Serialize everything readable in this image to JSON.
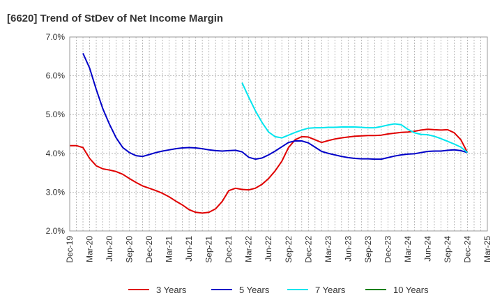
{
  "chart_data": {
    "type": "line",
    "title": "[6620]  Trend of StDev of Net Income Margin",
    "xlabel": "",
    "ylabel": "",
    "ylim": [
      2.0,
      7.0
    ],
    "y_ticks": [
      "2.0%",
      "3.0%",
      "4.0%",
      "5.0%",
      "6.0%",
      "7.0%"
    ],
    "x_ticks": [
      "Dec-19",
      "Mar-20",
      "Jun-20",
      "Sep-20",
      "Dec-20",
      "Mar-21",
      "Jun-21",
      "Sep-21",
      "Dec-21",
      "Mar-22",
      "Jun-22",
      "Sep-22",
      "Dec-22",
      "Mar-23",
      "Jun-23",
      "Sep-23",
      "Dec-23",
      "Mar-24",
      "Jun-24",
      "Sep-24",
      "Dec-24",
      "Mar-25"
    ],
    "grid": true,
    "legend_position": "bottom",
    "series": [
      {
        "name": "3 Years",
        "color": "#e00000",
        "points": [
          [
            "2019-12",
            4.2
          ],
          [
            "2020-01",
            4.2
          ],
          [
            "2020-02",
            4.15
          ],
          [
            "2020-03",
            3.87
          ],
          [
            "2020-04",
            3.68
          ],
          [
            "2020-05",
            3.6
          ],
          [
            "2020-06",
            3.57
          ],
          [
            "2020-07",
            3.53
          ],
          [
            "2020-08",
            3.46
          ],
          [
            "2020-09",
            3.35
          ],
          [
            "2020-10",
            3.25
          ],
          [
            "2020-11",
            3.16
          ],
          [
            "2020-12",
            3.1
          ],
          [
            "2021-01",
            3.04
          ],
          [
            "2021-02",
            2.97
          ],
          [
            "2021-03",
            2.88
          ],
          [
            "2021-04",
            2.77
          ],
          [
            "2021-05",
            2.67
          ],
          [
            "2021-06",
            2.55
          ],
          [
            "2021-07",
            2.48
          ],
          [
            "2021-08",
            2.46
          ],
          [
            "2021-09",
            2.48
          ],
          [
            "2021-10",
            2.57
          ],
          [
            "2021-11",
            2.76
          ],
          [
            "2021-12",
            3.04
          ],
          [
            "2022-01",
            3.1
          ],
          [
            "2022-02",
            3.07
          ],
          [
            "2022-03",
            3.06
          ],
          [
            "2022-04",
            3.1
          ],
          [
            "2022-05",
            3.2
          ],
          [
            "2022-06",
            3.35
          ],
          [
            "2022-07",
            3.55
          ],
          [
            "2022-08",
            3.8
          ],
          [
            "2022-09",
            4.15
          ],
          [
            "2022-10",
            4.35
          ],
          [
            "2022-11",
            4.43
          ],
          [
            "2022-12",
            4.42
          ],
          [
            "2023-01",
            4.35
          ],
          [
            "2023-02",
            4.28
          ],
          [
            "2023-03",
            4.33
          ],
          [
            "2023-04",
            4.37
          ],
          [
            "2023-05",
            4.4
          ],
          [
            "2023-06",
            4.42
          ],
          [
            "2023-07",
            4.44
          ],
          [
            "2023-08",
            4.45
          ],
          [
            "2023-09",
            4.46
          ],
          [
            "2023-10",
            4.46
          ],
          [
            "2023-11",
            4.47
          ],
          [
            "2023-12",
            4.5
          ],
          [
            "2024-01",
            4.52
          ],
          [
            "2024-02",
            4.54
          ],
          [
            "2024-03",
            4.55
          ],
          [
            "2024-04",
            4.57
          ],
          [
            "2024-05",
            4.6
          ],
          [
            "2024-06",
            4.62
          ],
          [
            "2024-07",
            4.61
          ],
          [
            "2024-08",
            4.6
          ],
          [
            "2024-09",
            4.61
          ],
          [
            "2024-10",
            4.53
          ],
          [
            "2024-11",
            4.35
          ],
          [
            "2024-12",
            4.02
          ]
        ]
      },
      {
        "name": "5 Years",
        "color": "#0000c8",
        "points": [
          [
            "2020-02",
            6.58
          ],
          [
            "2020-03",
            6.2
          ],
          [
            "2020-04",
            5.65
          ],
          [
            "2020-05",
            5.15
          ],
          [
            "2020-06",
            4.75
          ],
          [
            "2020-07",
            4.4
          ],
          [
            "2020-08",
            4.15
          ],
          [
            "2020-09",
            4.02
          ],
          [
            "2020-10",
            3.94
          ],
          [
            "2020-11",
            3.92
          ],
          [
            "2020-12",
            3.97
          ],
          [
            "2021-01",
            4.02
          ],
          [
            "2021-02",
            4.06
          ],
          [
            "2021-03",
            4.09
          ],
          [
            "2021-04",
            4.12
          ],
          [
            "2021-05",
            4.14
          ],
          [
            "2021-06",
            4.15
          ],
          [
            "2021-07",
            4.14
          ],
          [
            "2021-08",
            4.12
          ],
          [
            "2021-09",
            4.09
          ],
          [
            "2021-10",
            4.07
          ],
          [
            "2021-11",
            4.06
          ],
          [
            "2021-12",
            4.07
          ],
          [
            "2022-01",
            4.08
          ],
          [
            "2022-02",
            4.04
          ],
          [
            "2022-03",
            3.9
          ],
          [
            "2022-04",
            3.85
          ],
          [
            "2022-05",
            3.88
          ],
          [
            "2022-06",
            3.96
          ],
          [
            "2022-07",
            4.06
          ],
          [
            "2022-08",
            4.17
          ],
          [
            "2022-09",
            4.28
          ],
          [
            "2022-10",
            4.32
          ],
          [
            "2022-11",
            4.32
          ],
          [
            "2022-12",
            4.27
          ],
          [
            "2023-01",
            4.16
          ],
          [
            "2023-02",
            4.05
          ],
          [
            "2023-03",
            4.0
          ],
          [
            "2023-04",
            3.96
          ],
          [
            "2023-05",
            3.92
          ],
          [
            "2023-06",
            3.89
          ],
          [
            "2023-07",
            3.87
          ],
          [
            "2023-08",
            3.86
          ],
          [
            "2023-09",
            3.86
          ],
          [
            "2023-10",
            3.85
          ],
          [
            "2023-11",
            3.85
          ],
          [
            "2023-12",
            3.89
          ],
          [
            "2024-01",
            3.93
          ],
          [
            "2024-02",
            3.96
          ],
          [
            "2024-03",
            3.98
          ],
          [
            "2024-04",
            3.99
          ],
          [
            "2024-05",
            4.02
          ],
          [
            "2024-06",
            4.05
          ],
          [
            "2024-07",
            4.06
          ],
          [
            "2024-08",
            4.06
          ],
          [
            "2024-09",
            4.08
          ],
          [
            "2024-10",
            4.09
          ],
          [
            "2024-11",
            4.07
          ],
          [
            "2024-12",
            4.02
          ]
        ]
      },
      {
        "name": "7 Years",
        "color": "#00e5ee",
        "points": [
          [
            "2022-02",
            5.82
          ],
          [
            "2022-03",
            5.45
          ],
          [
            "2022-04",
            5.1
          ],
          [
            "2022-05",
            4.8
          ],
          [
            "2022-06",
            4.55
          ],
          [
            "2022-07",
            4.43
          ],
          [
            "2022-08",
            4.4
          ],
          [
            "2022-09",
            4.47
          ],
          [
            "2022-10",
            4.54
          ],
          [
            "2022-11",
            4.6
          ],
          [
            "2022-12",
            4.65
          ],
          [
            "2023-01",
            4.66
          ],
          [
            "2023-02",
            4.66
          ],
          [
            "2023-03",
            4.67
          ],
          [
            "2023-04",
            4.67
          ],
          [
            "2023-05",
            4.68
          ],
          [
            "2023-06",
            4.68
          ],
          [
            "2023-07",
            4.68
          ],
          [
            "2023-08",
            4.67
          ],
          [
            "2023-09",
            4.66
          ],
          [
            "2023-10",
            4.66
          ],
          [
            "2023-11",
            4.69
          ],
          [
            "2023-12",
            4.73
          ],
          [
            "2024-01",
            4.76
          ],
          [
            "2024-02",
            4.74
          ],
          [
            "2024-03",
            4.62
          ],
          [
            "2024-04",
            4.53
          ],
          [
            "2024-05",
            4.49
          ],
          [
            "2024-06",
            4.48
          ],
          [
            "2024-07",
            4.44
          ],
          [
            "2024-08",
            4.38
          ],
          [
            "2024-09",
            4.31
          ],
          [
            "2024-10",
            4.24
          ],
          [
            "2024-11",
            4.16
          ],
          [
            "2024-12",
            4.02
          ]
        ]
      },
      {
        "name": "10 Years",
        "color": "#008000",
        "points": []
      }
    ]
  }
}
